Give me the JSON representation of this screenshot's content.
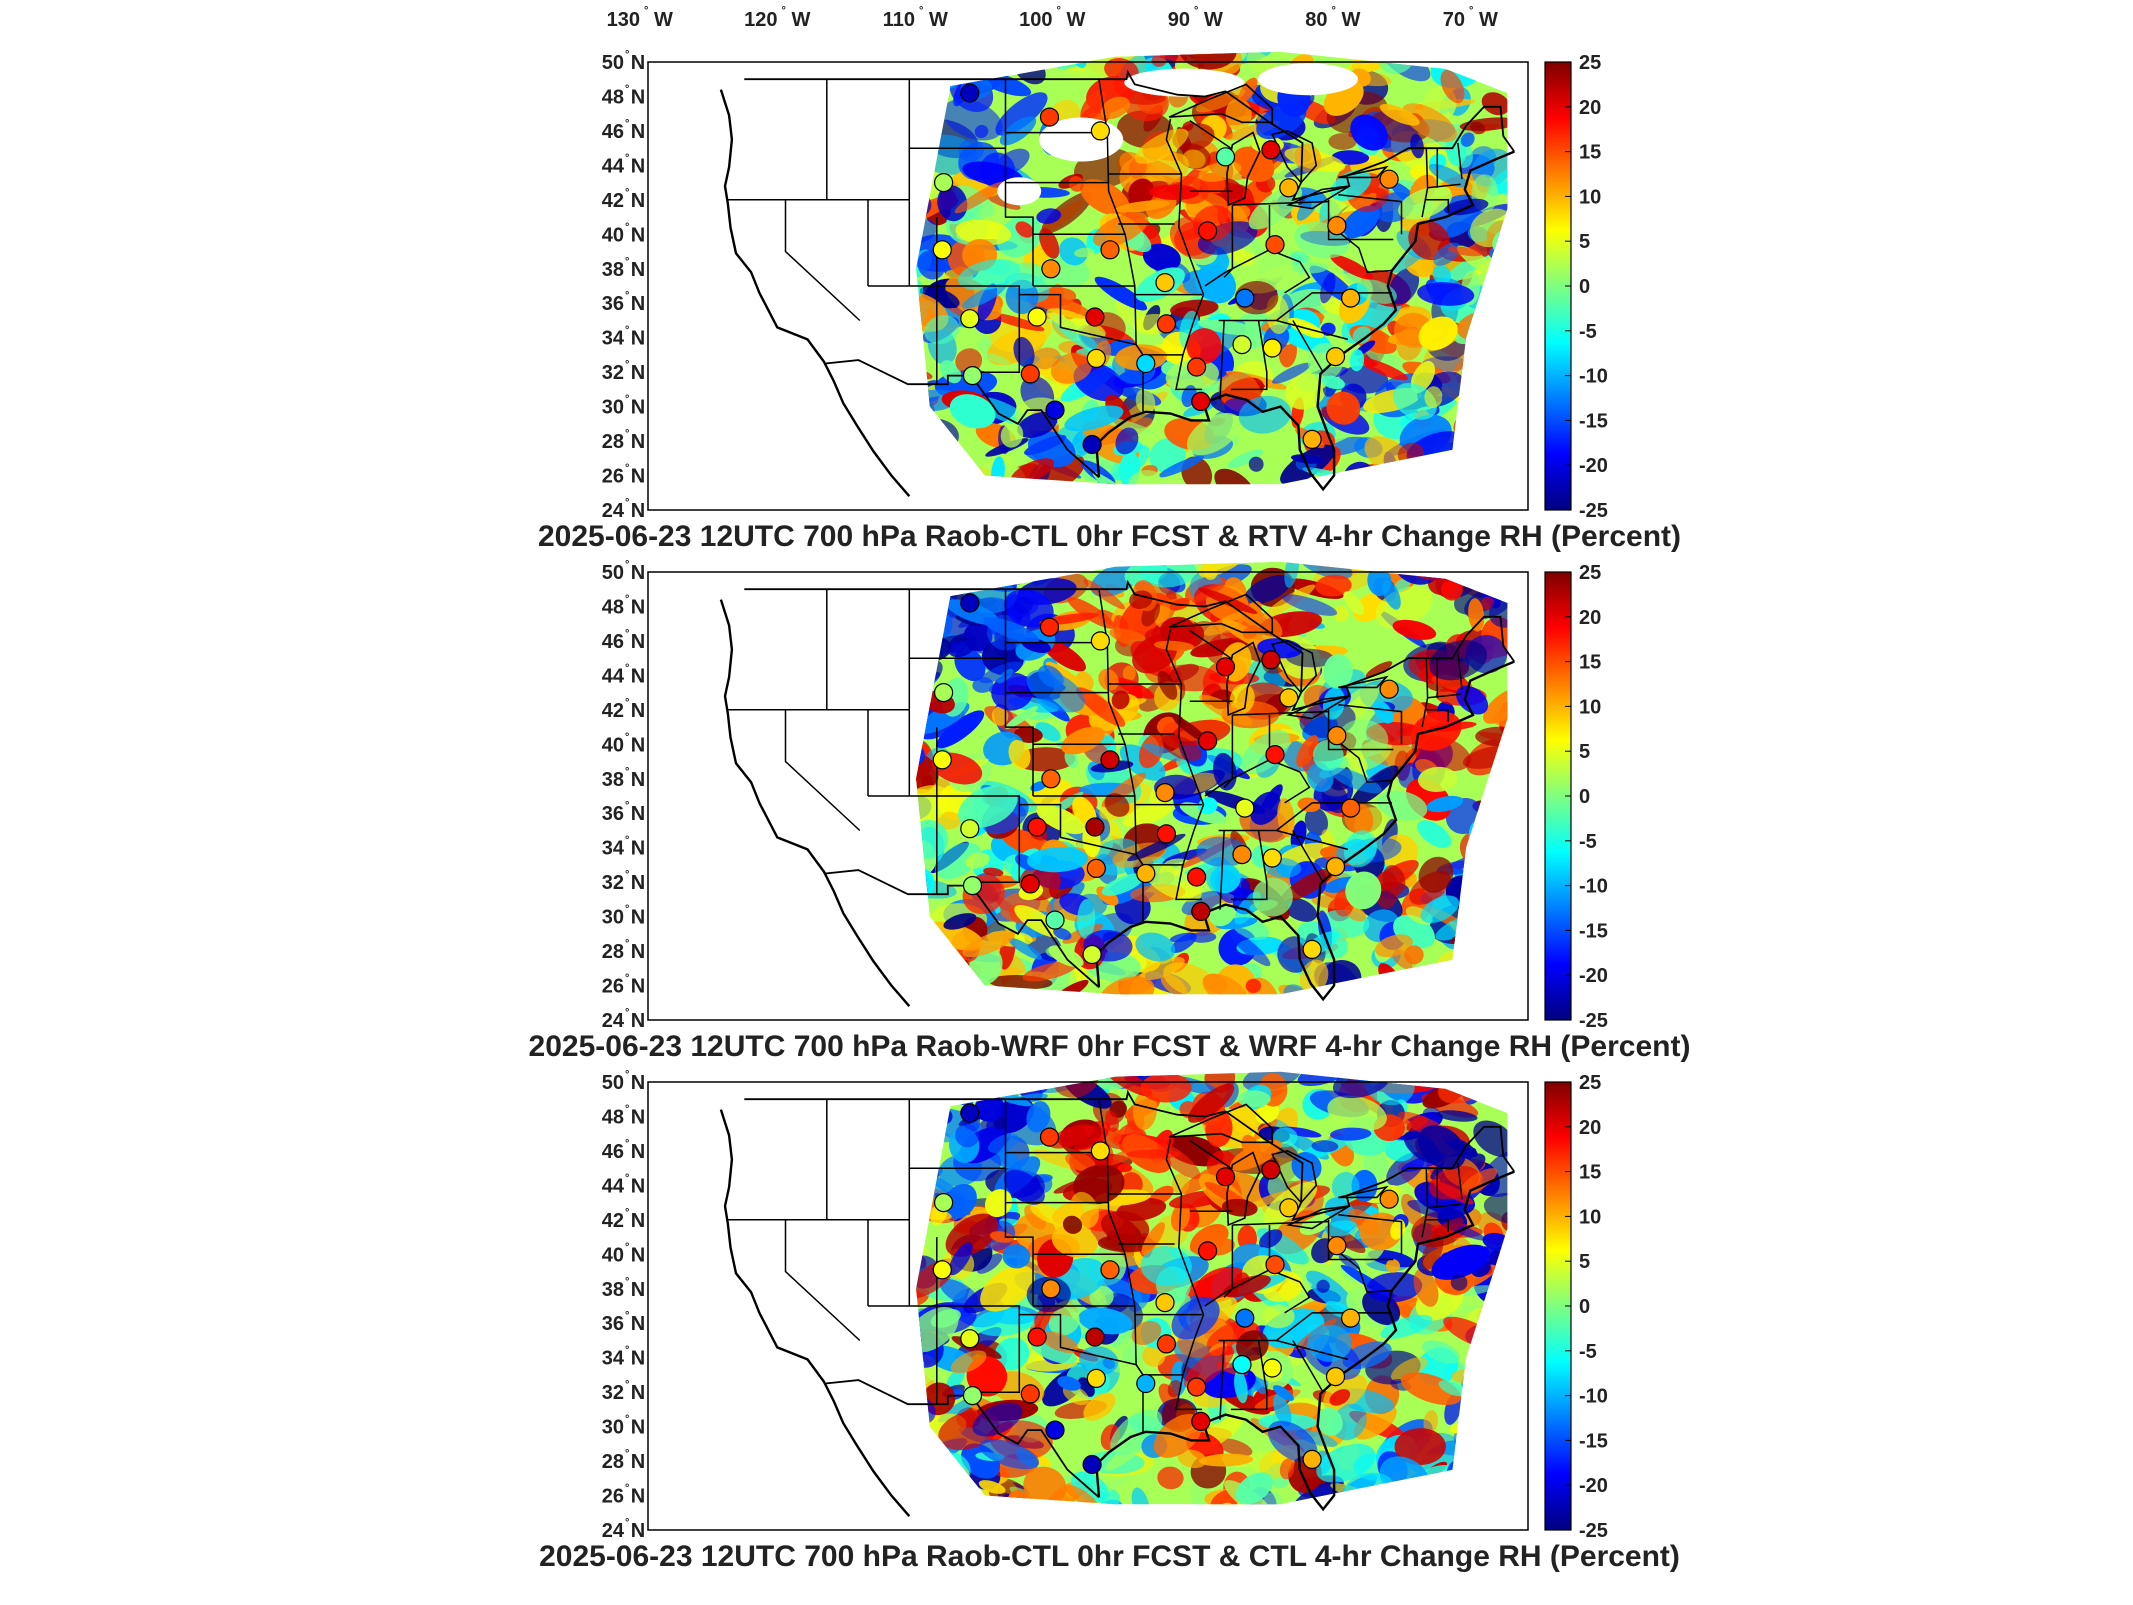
{
  "lon_labels": [
    {
      "lon": -130,
      "deg": "130",
      "hem": "W"
    },
    {
      "lon": -120,
      "deg": "120",
      "hem": "W"
    },
    {
      "lon": -110,
      "deg": "110",
      "hem": "W"
    },
    {
      "lon": -100,
      "deg": "100",
      "hem": "W"
    },
    {
      "lon": -90,
      "deg": "90",
      "hem": "W"
    },
    {
      "lon": -80,
      "deg": "80",
      "hem": "W"
    },
    {
      "lon": -70,
      "deg": "70",
      "hem": "W"
    }
  ],
  "lat_labels": [
    {
      "lat": 50,
      "deg": "50",
      "hem": "N"
    },
    {
      "lat": 48,
      "deg": "48",
      "hem": "N"
    },
    {
      "lat": 46,
      "deg": "46",
      "hem": "N"
    },
    {
      "lat": 44,
      "deg": "44",
      "hem": "N"
    },
    {
      "lat": 42,
      "deg": "42",
      "hem": "N"
    },
    {
      "lat": 40,
      "deg": "40",
      "hem": "N"
    },
    {
      "lat": 38,
      "deg": "38",
      "hem": "N"
    },
    {
      "lat": 36,
      "deg": "36",
      "hem": "N"
    },
    {
      "lat": 34,
      "deg": "34",
      "hem": "N"
    },
    {
      "lat": 32,
      "deg": "32",
      "hem": "N"
    },
    {
      "lat": 30,
      "deg": "30",
      "hem": "N"
    },
    {
      "lat": 28,
      "deg": "28",
      "hem": "N"
    },
    {
      "lat": 26,
      "deg": "26",
      "hem": "N"
    },
    {
      "lat": 24,
      "deg": "24",
      "hem": "N"
    }
  ],
  "colorbar": {
    "ticks": [
      "25",
      "20",
      "15",
      "10",
      "5",
      "0",
      "-5",
      "-10",
      "-15",
      "-20",
      "-25"
    ],
    "min": -25,
    "max": 25,
    "colormap": [
      "#00007f",
      "#0000ff",
      "#007fff",
      "#00ffff",
      "#7fff7f",
      "#ffff00",
      "#ff7f00",
      "#ff0000",
      "#7f0000"
    ]
  },
  "panels": [
    {
      "title": "2025-06-23 12UTC 700 hPa Raob-CTL 0hr FCST & RTV 4-hr Change RH (Percent)",
      "seed": 11
    },
    {
      "title": "2025-06-23 12UTC 700 hPa Raob-WRF 0hr FCST & WRF 4-hr Change RH (Percent)",
      "seed": 23
    },
    {
      "title": "2025-06-23 12UTC 700 hPa Raob-CTL 0hr FCST & CTL 4-hr Change RH (Percent)",
      "seed": 37
    }
  ],
  "map_extent": {
    "lon_min": -130,
    "lon_max": -66,
    "lat_min": 24,
    "lat_max": 50
  },
  "raob_stations": [
    {
      "lon": -100.8,
      "lat": 46.8,
      "v": [
        16,
        17,
        16
      ]
    },
    {
      "lon": -97.1,
      "lat": 46.0,
      "v": [
        8,
        8,
        8
      ]
    },
    {
      "lon": -106.6,
      "lat": 48.2,
      "v": [
        -22,
        -22,
        -22
      ]
    },
    {
      "lon": -108.5,
      "lat": 43.0,
      "v": [
        2,
        2,
        2
      ]
    },
    {
      "lon": -108.6,
      "lat": 39.1,
      "v": [
        6,
        6,
        6
      ]
    },
    {
      "lon": -100.7,
      "lat": 38.0,
      "v": [
        12,
        14,
        12
      ]
    },
    {
      "lon": -96.4,
      "lat": 39.1,
      "v": [
        14,
        21,
        14
      ]
    },
    {
      "lon": -92.4,
      "lat": 37.2,
      "v": [
        9,
        12,
        9
      ]
    },
    {
      "lon": -89.3,
      "lat": 40.2,
      "v": [
        18,
        20,
        18
      ]
    },
    {
      "lon": -84.4,
      "lat": 39.4,
      "v": [
        15,
        18,
        15
      ]
    },
    {
      "lon": -79.9,
      "lat": 40.5,
      "v": [
        12,
        12,
        12
      ]
    },
    {
      "lon": -83.4,
      "lat": 42.7,
      "v": [
        10,
        9,
        9
      ]
    },
    {
      "lon": -88.0,
      "lat": 44.5,
      "v": [
        -2,
        20,
        20
      ]
    },
    {
      "lon": -84.7,
      "lat": 44.9,
      "v": [
        20,
        21,
        21
      ]
    },
    {
      "lon": -76.1,
      "lat": 43.2,
      "v": [
        12,
        12,
        12
      ]
    },
    {
      "lon": -78.9,
      "lat": 36.3,
      "v": [
        10,
        14,
        10
      ]
    },
    {
      "lon": -80.0,
      "lat": 32.9,
      "v": [
        9,
        10,
        9
      ]
    },
    {
      "lon": -86.6,
      "lat": 36.3,
      "v": [
        -13,
        5,
        -13
      ]
    },
    {
      "lon": -92.3,
      "lat": 34.8,
      "v": [
        16,
        18,
        16
      ]
    },
    {
      "lon": -97.5,
      "lat": 35.2,
      "v": [
        20,
        23,
        22
      ]
    },
    {
      "lon": -101.7,
      "lat": 35.2,
      "v": [
        6,
        18,
        18
      ]
    },
    {
      "lon": -106.6,
      "lat": 35.1,
      "v": [
        5,
        4,
        5
      ]
    },
    {
      "lon": -97.4,
      "lat": 32.8,
      "v": [
        8,
        14,
        8
      ]
    },
    {
      "lon": -102.2,
      "lat": 31.9,
      "v": [
        16,
        20,
        16
      ]
    },
    {
      "lon": -106.4,
      "lat": 31.8,
      "v": [
        1,
        1,
        1
      ]
    },
    {
      "lon": -93.8,
      "lat": 32.5,
      "v": [
        -8,
        10,
        -10
      ]
    },
    {
      "lon": -90.1,
      "lat": 32.3,
      "v": [
        16,
        18,
        16
      ]
    },
    {
      "lon": -86.8,
      "lat": 33.6,
      "v": [
        4,
        12,
        -6
      ]
    },
    {
      "lon": -84.6,
      "lat": 33.4,
      "v": [
        7,
        8,
        6
      ]
    },
    {
      "lon": -89.8,
      "lat": 30.3,
      "v": [
        20,
        22,
        20
      ]
    },
    {
      "lon": -97.7,
      "lat": 27.8,
      "v": [
        -22,
        4,
        -22
      ]
    },
    {
      "lon": -81.7,
      "lat": 28.1,
      "v": [
        10,
        8,
        10
      ]
    },
    {
      "lon": -100.4,
      "lat": 29.8,
      "v": [
        -20,
        -2,
        -20
      ]
    }
  ]
}
